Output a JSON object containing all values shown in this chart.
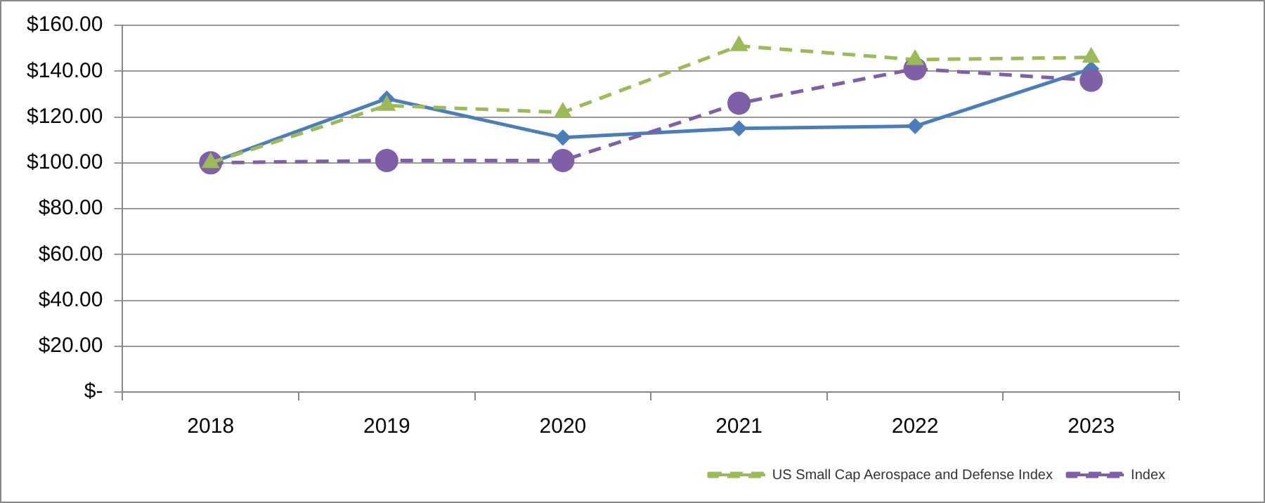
{
  "chart_data": {
    "type": "line",
    "categories": [
      "2018",
      "2019",
      "2020",
      "2021",
      "2022",
      "2023"
    ],
    "series": [
      {
        "color": "#4a7ebb",
        "values": [
          100,
          128,
          111,
          115,
          116,
          141
        ],
        "marker": "diamond",
        "line_style": "solid"
      },
      {
        "name": "Index",
        "color": "#7f5fa8",
        "values": [
          100,
          101,
          101,
          126,
          141,
          136
        ],
        "marker": "circle",
        "line_style": "dashed"
      },
      {
        "name": "US Small Cap Aerospace and Defense Index",
        "color": "#9bbb59",
        "values": [
          100,
          125,
          122,
          151,
          145,
          146
        ],
        "marker": "triangle",
        "line_style": "dashed"
      }
    ],
    "ylim": [
      0,
      160
    ],
    "yticks": [
      {
        "value": 0,
        "label": "$-"
      },
      {
        "value": 20,
        "label": "$20.00"
      },
      {
        "value": 40,
        "label": "$40.00"
      },
      {
        "value": 60,
        "label": "$60.00"
      },
      {
        "value": 80,
        "label": "$80.00"
      },
      {
        "value": 100,
        "label": "$100.00"
      },
      {
        "value": 120,
        "label": "$120.00"
      },
      {
        "value": 140,
        "label": "$140.00"
      },
      {
        "value": 160,
        "label": "$160.00"
      }
    ],
    "grid": "y",
    "legend": "bottom right"
  }
}
